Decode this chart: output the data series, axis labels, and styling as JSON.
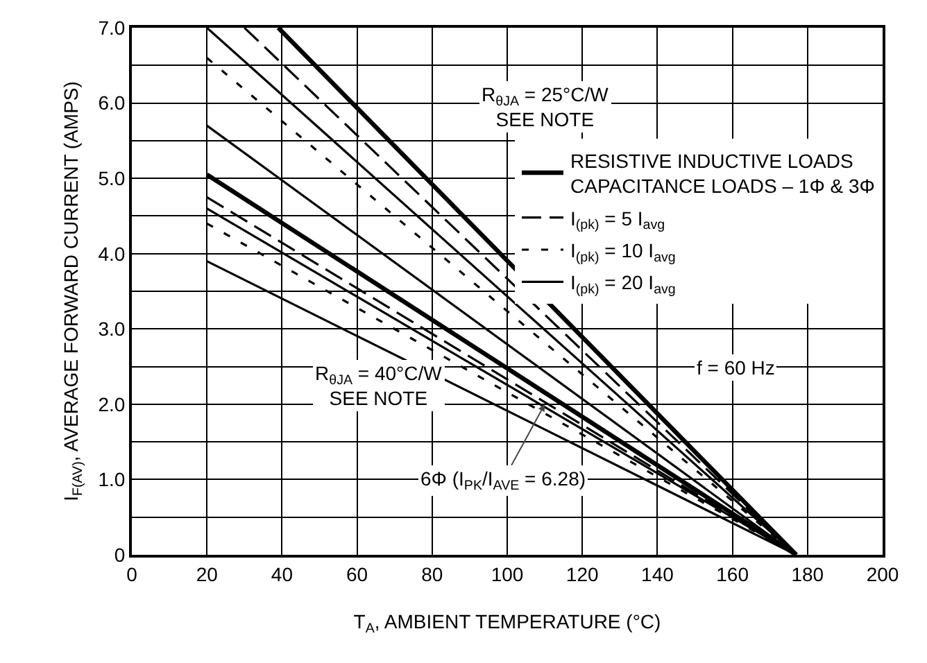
{
  "chart_data": {
    "type": "line",
    "xlabel": "T$_{A}$, AMBIENT TEMPERATURE (°C)",
    "ylabel": "I$_{F(AV)}$, AVERAGE FORWARD CURRENT (AMPS)",
    "xlim": [
      0,
      200
    ],
    "xticks": [
      0,
      20,
      40,
      60,
      80,
      100,
      120,
      140,
      160,
      180,
      200
    ],
    "ylim": [
      0,
      7
    ],
    "yticks": [
      0,
      {
        "value": 0.5,
        "label": null
      },
      {
        "value": 1,
        "label": "1.0"
      },
      {
        "value": 1.5,
        "label": null
      },
      {
        "value": 2,
        "label": "2.0"
      },
      {
        "value": 2.5,
        "label": null
      },
      {
        "value": 3,
        "label": "3.0"
      },
      {
        "value": 3.5,
        "label": null
      },
      {
        "value": 4,
        "label": "4.0"
      },
      {
        "value": 4.5,
        "label": null
      },
      {
        "value": 5,
        "label": "5.0"
      },
      {
        "value": 5.5,
        "label": null
      },
      {
        "value": 6,
        "label": "6.0"
      },
      {
        "value": 6.5,
        "label": null
      },
      {
        "value": 7,
        "label": "7.0"
      }
    ],
    "grid": true,
    "legend": "top right",
    "marker": "none",
    "series": [
      {
        "name": "RESISTIVE INDUCTIVE LOADS\nCAPACITANCE LOADS – 1Φ & 3Φ",
        "color": "#000000",
        "line_style": "solid",
        "x": [
          39,
          177
        ],
        "values": [
          7,
          0
        ]
      },
      {
        "name": "I$_{(pk)}$ = 5 I$_{avg}$",
        "color": "#000000",
        "line_style": "dashed",
        "x": [
          30,
          177
        ],
        "values": [
          7,
          0
        ]
      },
      {
        "name": "I$_{(pk)}$ = 10 I$_{avg}$",
        "color": "#000000",
        "line_style": "dotted",
        "x": [
          20,
          177
        ],
        "values": [
          6.6,
          0
        ]
      },
      {
        "name": "I$_{(pk)}$ = 20 I$_{avg}$",
        "color": "#000000",
        "line_style": "solid",
        "x": [
          20,
          177
        ],
        "values": [
          5.7,
          0
        ]
      },
      {
        "color": "#000000",
        "line_style": "solid",
        "x": [
          20,
          177
        ],
        "values": [
          7,
          0
        ]
      },
      {
        "color": "#000000",
        "line_style": "solid",
        "x": [
          20,
          177
        ],
        "values": [
          5.05,
          0
        ]
      },
      {
        "color": "#000000",
        "line_style": "dashed",
        "x": [
          20,
          177
        ],
        "values": [
          4.75,
          0
        ]
      },
      {
        "color": "#000000",
        "line_style": "dotted",
        "x": [
          20,
          177
        ],
        "values": [
          4.4,
          0
        ]
      },
      {
        "color": "#000000",
        "line_style": "solid",
        "x": [
          20,
          177
        ],
        "values": [
          3.9,
          0
        ]
      },
      {
        "color": "#000000",
        "line_style": "solid",
        "x": [
          20,
          177
        ],
        "values": [
          4.6,
          0
        ]
      }
    ],
    "annotations": [
      "R$_{θJA}$ = 25°C/W\nSEE NOTE",
      "R$_{θJA}$ = 40°C/W\nSEE NOTE",
      {
        "text": "6Φ (I$_{PK}$/I$_{AVE}$ = 6.28)",
        "x": 110,
        "y": 2.0
      },
      "f = 60 Hz"
    ]
  }
}
